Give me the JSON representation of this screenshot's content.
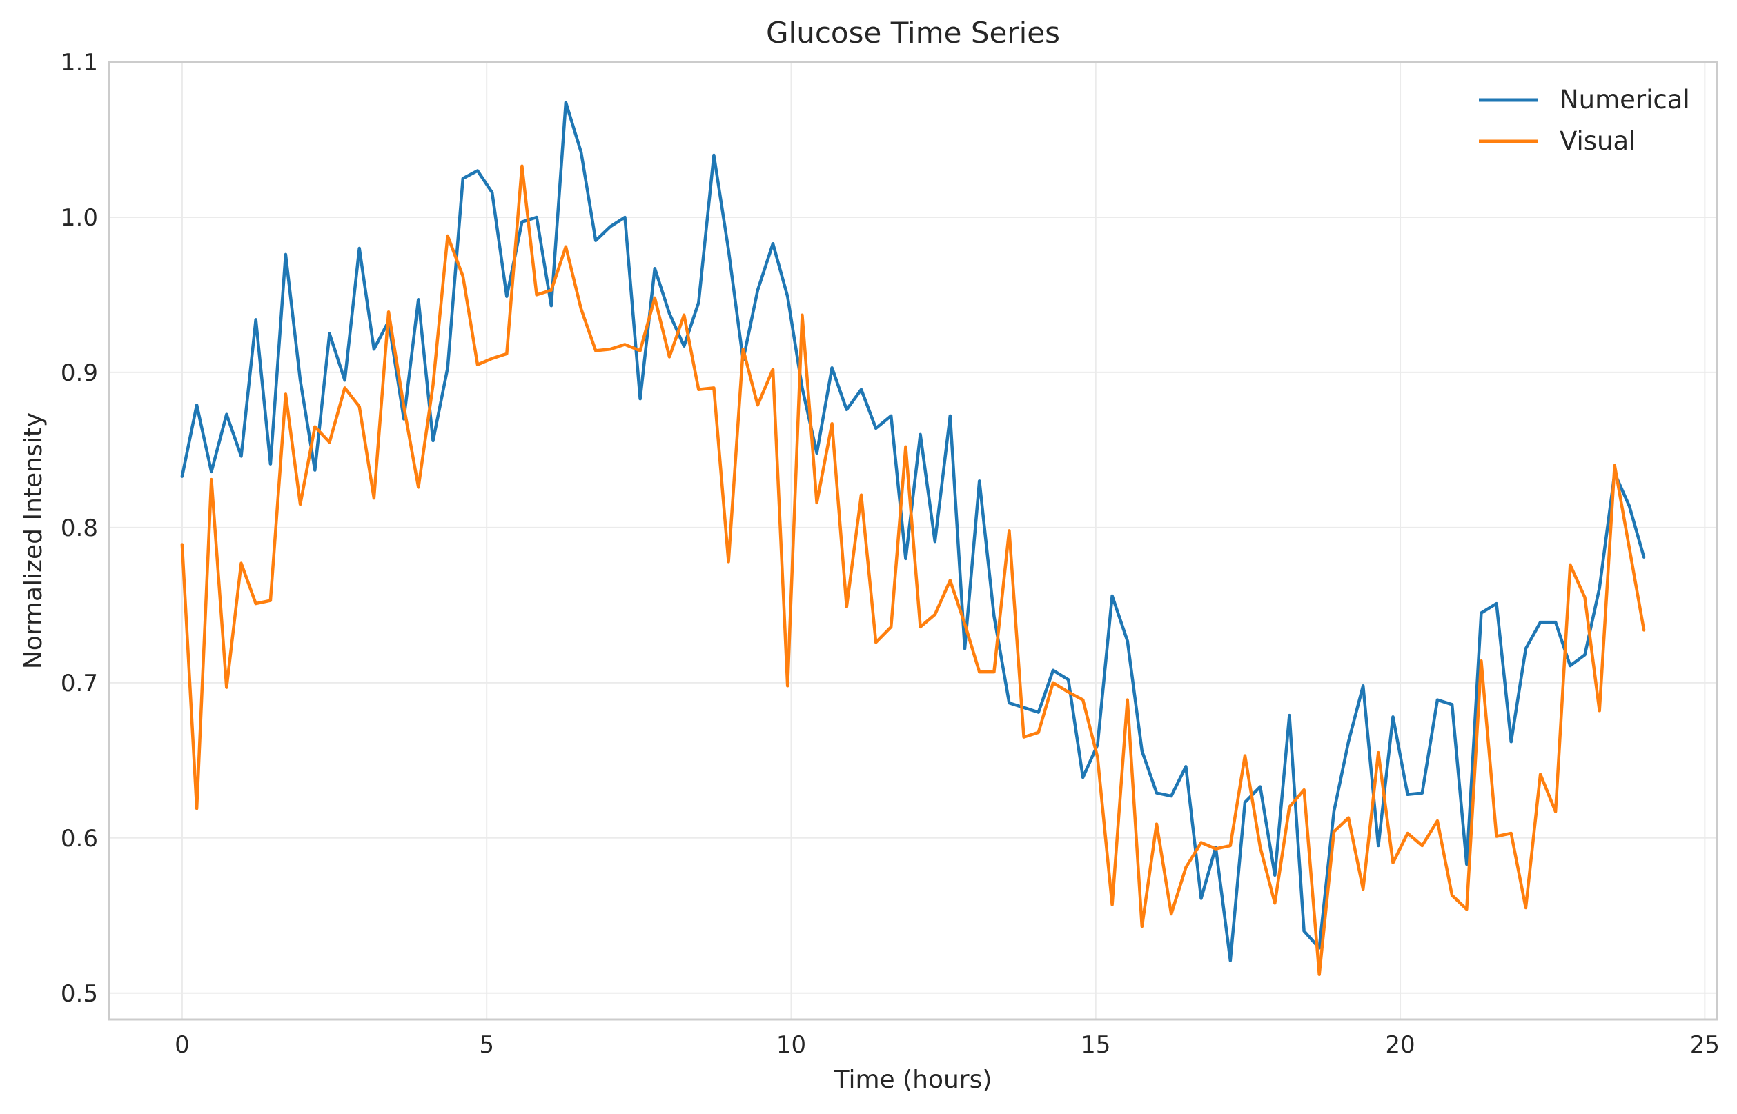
{
  "chart_data": {
    "type": "line",
    "title": "Glucose Time Series",
    "xlabel": "Time (hours)",
    "ylabel": "Normalized Intensity",
    "xlim": [
      -1.2,
      25.2
    ],
    "ylim": [
      0.483,
      1.1
    ],
    "xticks": [
      0,
      5,
      10,
      15,
      20,
      25
    ],
    "yticks": [
      0.5,
      0.6,
      0.7,
      0.8,
      0.9,
      1.0,
      1.1
    ],
    "xtick_labels": [
      "0",
      "5",
      "10",
      "15",
      "20",
      "25"
    ],
    "ytick_labels": [
      "0.5",
      "0.6",
      "0.7",
      "0.8",
      "0.9",
      "1.0",
      "1.1"
    ],
    "grid": true,
    "legend_position": "top-right",
    "x": [
      0.0,
      0.24,
      0.48,
      0.73,
      0.97,
      1.21,
      1.45,
      1.7,
      1.94,
      2.18,
      2.42,
      2.67,
      2.91,
      3.15,
      3.39,
      3.64,
      3.88,
      4.12,
      4.36,
      4.61,
      4.85,
      5.09,
      5.33,
      5.58,
      5.82,
      6.06,
      6.3,
      6.55,
      6.79,
      7.03,
      7.27,
      7.52,
      7.76,
      8.0,
      8.24,
      8.48,
      8.73,
      8.97,
      9.21,
      9.45,
      9.7,
      9.94,
      10.18,
      10.42,
      10.67,
      10.91,
      11.15,
      11.39,
      11.64,
      11.88,
      12.12,
      12.36,
      12.61,
      12.85,
      13.09,
      13.33,
      13.58,
      13.82,
      14.06,
      14.3,
      14.55,
      14.79,
      15.03,
      15.27,
      15.52,
      15.76,
      16.0,
      16.24,
      16.48,
      16.73,
      16.97,
      17.21,
      17.45,
      17.7,
      17.94,
      18.18,
      18.42,
      18.67,
      18.91,
      19.15,
      19.39,
      19.64,
      19.88,
      20.12,
      20.36,
      20.61,
      20.85,
      21.09,
      21.33,
      21.58,
      21.82,
      22.06,
      22.3,
      22.55,
      22.79,
      23.03,
      23.27,
      23.52,
      23.76,
      24.0
    ],
    "series": [
      {
        "name": "Numerical",
        "color": "#1f77b4",
        "values": [
          0.833,
          0.879,
          0.836,
          0.873,
          0.846,
          0.934,
          0.841,
          0.976,
          0.895,
          0.837,
          0.925,
          0.895,
          0.98,
          0.915,
          0.933,
          0.87,
          0.947,
          0.856,
          0.903,
          1.025,
          1.03,
          1.016,
          0.949,
          0.997,
          1.0,
          0.943,
          1.074,
          1.042,
          0.985,
          0.994,
          1.0,
          0.883,
          0.967,
          0.938,
          0.917,
          0.945,
          1.04,
          0.979,
          0.908,
          0.953,
          0.983,
          0.949,
          0.89,
          0.848,
          0.903,
          0.876,
          0.889,
          0.864,
          0.872,
          0.78,
          0.86,
          0.791,
          0.872,
          0.722,
          0.83,
          0.743,
          0.687,
          0.684,
          0.681,
          0.708,
          0.702,
          0.639,
          0.66,
          0.756,
          0.727,
          0.656,
          0.629,
          0.627,
          0.646,
          0.561,
          0.594,
          0.521,
          0.623,
          0.633,
          0.576,
          0.679,
          0.54,
          0.529,
          0.617,
          0.662,
          0.698,
          0.595,
          0.678,
          0.628,
          0.629,
          0.689,
          0.686,
          0.583,
          0.745,
          0.751,
          0.662,
          0.722,
          0.739,
          0.739,
          0.711,
          0.718,
          0.761,
          0.835,
          0.814,
          0.781
        ]
      },
      {
        "name": "Visual",
        "color": "#ff7f0e",
        "values": [
          0.789,
          0.619,
          0.831,
          0.697,
          0.777,
          0.751,
          0.753,
          0.886,
          0.815,
          0.865,
          0.855,
          0.89,
          0.878,
          0.819,
          0.939,
          0.878,
          0.826,
          0.892,
          0.988,
          0.962,
          0.905,
          0.909,
          0.912,
          1.033,
          0.95,
          0.953,
          0.981,
          0.941,
          0.914,
          0.915,
          0.918,
          0.914,
          0.948,
          0.91,
          0.937,
          0.889,
          0.89,
          0.778,
          0.915,
          0.879,
          0.902,
          0.698,
          0.937,
          0.816,
          0.867,
          0.749,
          0.821,
          0.726,
          0.736,
          0.852,
          0.736,
          0.744,
          0.766,
          0.738,
          0.707,
          0.707,
          0.798,
          0.665,
          0.668,
          0.7,
          0.694,
          0.689,
          0.652,
          0.557,
          0.689,
          0.543,
          0.609,
          0.551,
          0.581,
          0.597,
          0.593,
          0.595,
          0.653,
          0.594,
          0.558,
          0.62,
          0.631,
          0.512,
          0.604,
          0.613,
          0.567,
          0.655,
          0.584,
          0.603,
          0.595,
          0.611,
          0.563,
          0.554,
          0.714,
          0.601,
          0.603,
          0.555,
          0.641,
          0.617,
          0.776,
          0.755,
          0.682,
          0.84,
          0.787,
          0.734
        ]
      }
    ]
  }
}
